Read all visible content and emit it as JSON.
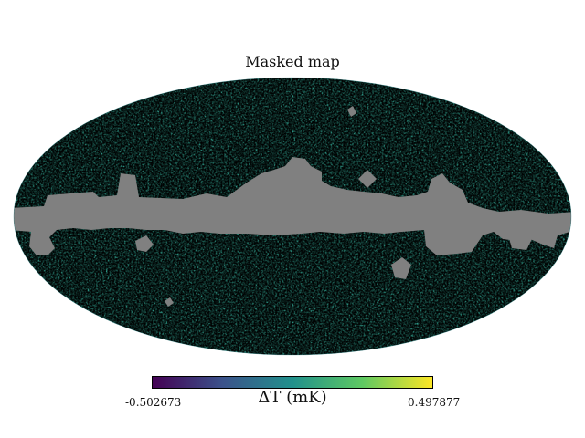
{
  "title": "Masked map",
  "projection": "mollweide",
  "mask_color": "#808080",
  "colormap": {
    "name": "viridis",
    "stops": [
      "#440154",
      "#3b528b",
      "#21918c",
      "#5ec962",
      "#fde725"
    ]
  },
  "colorbar": {
    "min_label": "-0.502673",
    "max_label": "0.497877",
    "label": "ΔT (mK)"
  }
}
